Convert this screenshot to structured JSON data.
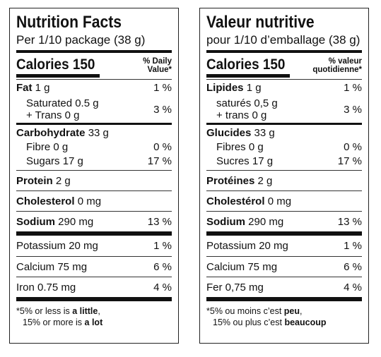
{
  "english": {
    "title": "Nutrition Facts",
    "serving": "Per 1/10 package (38 g)",
    "calories_label": "Calories 150",
    "dv_header_line1": "% Daily",
    "dv_header_line2": "Value*",
    "fat": {
      "label": "Fat",
      "amount": "1 g",
      "dv": "1 %"
    },
    "saturated": {
      "label": "Saturated 0.5 g"
    },
    "trans": {
      "label": "+ Trans 0 g"
    },
    "saturated_trans_dv": "3 %",
    "carbohydrate": {
      "label": "Carbohydrate",
      "amount": "33 g"
    },
    "fibre": {
      "label": "Fibre 0 g",
      "dv": "0 %"
    },
    "sugars": {
      "label": "Sugars 17 g",
      "dv": "17 %"
    },
    "protein": {
      "label": "Protein",
      "amount": "2 g"
    },
    "cholesterol": {
      "label": "Cholesterol",
      "amount": "0 mg"
    },
    "sodium": {
      "label": "Sodium",
      "amount": "290 mg",
      "dv": "13 %"
    },
    "potassium": {
      "label": "Potassium 20 mg",
      "dv": "1 %"
    },
    "calcium": {
      "label": "Calcium 75 mg",
      "dv": "6 %"
    },
    "iron": {
      "label": "Iron 0.75 mg",
      "dv": "4 %"
    },
    "footnote_line1_pre": "*5% or less is ",
    "footnote_line1_bold": "a little",
    "footnote_line1_post": ",",
    "footnote_line2_pre": "15% or more is ",
    "footnote_line2_bold": "a lot"
  },
  "french": {
    "title": "Valeur nutritive",
    "serving": "pour 1/10 d’emballage (38 g)",
    "calories_label": "Calories 150",
    "dv_header_line1": "% valeur",
    "dv_header_line2": "quotidienne*",
    "fat": {
      "label": "Lipides",
      "amount": "1 g",
      "dv": "1 %"
    },
    "saturated": {
      "label": "saturés 0,5 g"
    },
    "trans": {
      "label": "+ trans 0 g"
    },
    "saturated_trans_dv": "3 %",
    "carbohydrate": {
      "label": "Glucides",
      "amount": "33 g"
    },
    "fibre": {
      "label": "Fibres 0 g",
      "dv": "0 %"
    },
    "sugars": {
      "label": "Sucres 17 g",
      "dv": "17 %"
    },
    "protein": {
      "label": "Protéines",
      "amount": "2 g"
    },
    "cholesterol": {
      "label": "Cholestérol",
      "amount": "0 mg"
    },
    "sodium": {
      "label": "Sodium",
      "amount": "290 mg",
      "dv": "13 %"
    },
    "potassium": {
      "label": "Potassium 20 mg",
      "dv": "1 %"
    },
    "calcium": {
      "label": "Calcium 75 mg",
      "dv": "6 %"
    },
    "iron": {
      "label": "Fer 0,75 mg",
      "dv": "4 %"
    },
    "footnote_line1_pre": "*5% ou moins c’est ",
    "footnote_line1_bold": "peu",
    "footnote_line1_post": ",",
    "footnote_line2_pre": "15% ou plus c’est ",
    "footnote_line2_bold": "beaucoup"
  }
}
